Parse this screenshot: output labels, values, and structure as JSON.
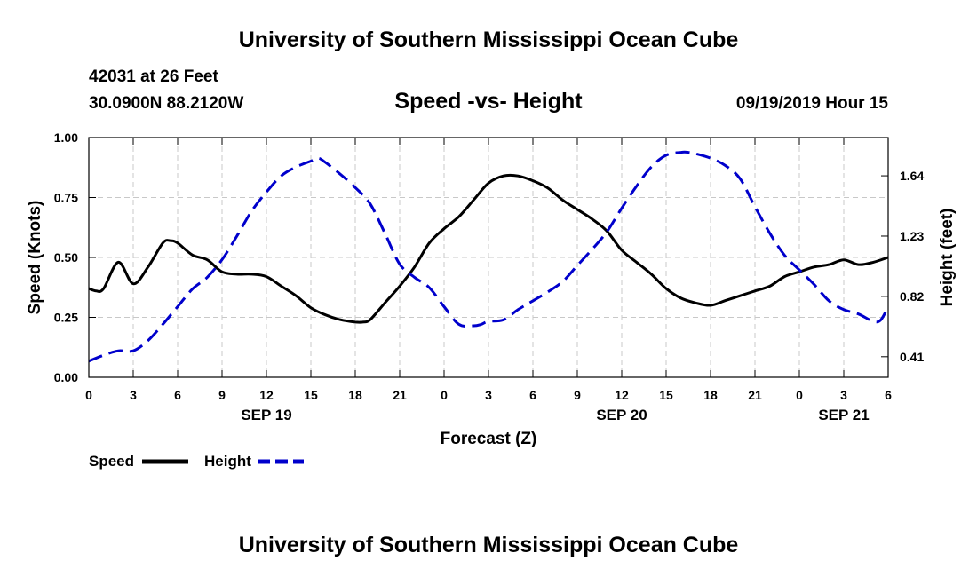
{
  "header": {
    "title": "University of Southern Mississippi Ocean Cube",
    "station": "42031 at 26 Feet",
    "coordinates": "30.0900N 88.2120W",
    "subtitle": "Speed -vs- Height",
    "datetime": "09/19/2019 Hour 15"
  },
  "footer": {
    "title": "University of Southern Mississippi Ocean Cube"
  },
  "chart_data": {
    "type": "line",
    "title": "Speed -vs- Height",
    "xlabel": "Forecast (Z)",
    "ylabel": "Speed (Knots)",
    "y2label": "Height (feet)",
    "x_range_hours": [
      0,
      54
    ],
    "ylim": [
      0,
      1
    ],
    "y2lim": [
      0.27,
      1.9
    ],
    "x_ticks": [
      {
        "h": 0,
        "label": "0"
      },
      {
        "h": 3,
        "label": "3"
      },
      {
        "h": 6,
        "label": "6"
      },
      {
        "h": 9,
        "label": "9"
      },
      {
        "h": 12,
        "label": "12"
      },
      {
        "h": 15,
        "label": "15"
      },
      {
        "h": 18,
        "label": "18"
      },
      {
        "h": 21,
        "label": "21"
      },
      {
        "h": 24,
        "label": "0"
      },
      {
        "h": 27,
        "label": "3"
      },
      {
        "h": 30,
        "label": "6"
      },
      {
        "h": 33,
        "label": "9"
      },
      {
        "h": 36,
        "label": "12"
      },
      {
        "h": 39,
        "label": "15"
      },
      {
        "h": 42,
        "label": "18"
      },
      {
        "h": 45,
        "label": "21"
      },
      {
        "h": 48,
        "label": "0"
      },
      {
        "h": 51,
        "label": "3"
      },
      {
        "h": 54,
        "label": "6"
      }
    ],
    "date_labels": [
      {
        "h": 12,
        "label": "SEP 19"
      },
      {
        "h": 36,
        "label": "SEP 20"
      },
      {
        "h": 51,
        "label": "SEP 21"
      }
    ],
    "y_ticks": [
      {
        "v": 0,
        "label": "0.00"
      },
      {
        "v": 0.25,
        "label": "0.25"
      },
      {
        "v": 0.5,
        "label": "0.50"
      },
      {
        "v": 0.75,
        "label": "0.75"
      },
      {
        "v": 1.0,
        "label": "1.00"
      }
    ],
    "y2_ticks": [
      {
        "v": 0.41,
        "label": "0.41"
      },
      {
        "v": 0.82,
        "label": "0.82"
      },
      {
        "v": 1.23,
        "label": "1.23"
      },
      {
        "v": 1.64,
        "label": "1.64"
      }
    ],
    "legend": [
      {
        "name": "Speed",
        "color": "#000000",
        "style": "solid"
      },
      {
        "name": "Height",
        "color": "#0000cc",
        "style": "dashed"
      }
    ],
    "series": [
      {
        "name": "Speed",
        "axis": "left",
        "color": "#000000",
        "x": [
          0,
          0.5,
          1,
          2,
          3,
          4,
          5,
          5.5,
          6,
          7,
          8,
          9,
          10,
          11,
          12,
          13,
          14,
          15,
          16,
          17,
          18,
          18.5,
          19,
          20,
          21,
          22,
          23,
          24,
          25,
          26,
          27,
          28,
          29,
          30,
          31,
          32,
          33,
          34,
          35,
          36,
          37,
          38,
          39,
          40,
          41,
          42,
          43,
          44,
          45,
          46,
          47,
          48,
          49,
          50,
          51,
          52,
          53,
          54
        ],
        "values": [
          0.37,
          0.36,
          0.37,
          0.48,
          0.39,
          0.46,
          0.56,
          0.57,
          0.56,
          0.51,
          0.49,
          0.44,
          0.43,
          0.43,
          0.42,
          0.38,
          0.34,
          0.29,
          0.26,
          0.24,
          0.23,
          0.23,
          0.24,
          0.31,
          0.38,
          0.46,
          0.56,
          0.62,
          0.67,
          0.74,
          0.81,
          0.84,
          0.84,
          0.82,
          0.79,
          0.74,
          0.7,
          0.66,
          0.61,
          0.53,
          0.48,
          0.43,
          0.37,
          0.33,
          0.31,
          0.3,
          0.32,
          0.34,
          0.36,
          0.38,
          0.42,
          0.44,
          0.46,
          0.47,
          0.49,
          0.47,
          0.48,
          0.5
        ]
      },
      {
        "name": "Height",
        "axis": "right",
        "color": "#0000cc",
        "x": [
          0,
          1,
          2,
          3,
          4,
          5,
          6,
          7,
          8,
          9,
          10,
          11,
          12,
          13,
          14,
          15,
          15.5,
          16,
          17,
          18,
          19,
          20,
          21,
          22,
          23,
          24,
          25,
          26,
          26.5,
          27,
          28,
          29,
          30,
          31,
          32,
          33,
          34,
          35,
          36,
          37,
          38,
          39,
          40,
          40.5,
          41,
          42,
          43,
          44,
          45,
          46,
          47,
          48,
          49,
          50,
          51,
          52,
          53,
          53.5,
          54
        ],
        "values": [
          0.38,
          0.42,
          0.45,
          0.45,
          0.52,
          0.63,
          0.75,
          0.87,
          0.95,
          1.07,
          1.23,
          1.4,
          1.53,
          1.64,
          1.7,
          1.74,
          1.76,
          1.73,
          1.65,
          1.56,
          1.45,
          1.25,
          1.04,
          0.95,
          0.88,
          0.75,
          0.63,
          0.62,
          0.63,
          0.65,
          0.66,
          0.73,
          0.79,
          0.85,
          0.92,
          1.03,
          1.14,
          1.26,
          1.42,
          1.57,
          1.7,
          1.78,
          1.8,
          1.8,
          1.79,
          1.76,
          1.71,
          1.62,
          1.43,
          1.25,
          1.1,
          1.0,
          0.9,
          0.79,
          0.73,
          0.7,
          0.65,
          0.66,
          0.75
        ]
      }
    ]
  }
}
